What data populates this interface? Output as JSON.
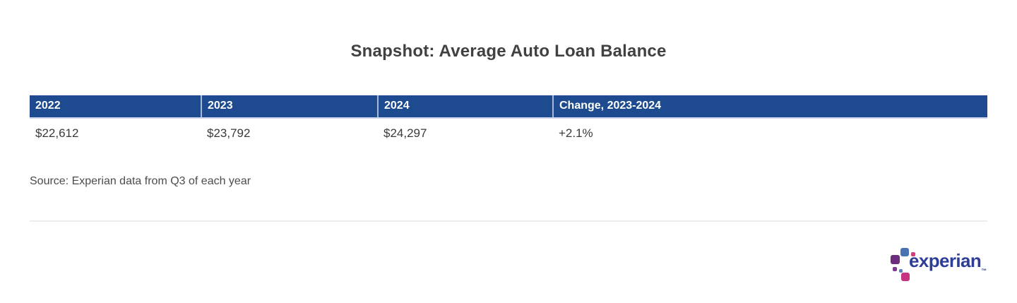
{
  "title": "Snapshot: Average Auto Loan Balance",
  "table": {
    "headers": [
      "2022",
      "2023",
      "2024",
      "Change, 2023-2024"
    ],
    "rows": [
      [
        "$22,612",
        "$23,792",
        "$24,297",
        "+2.1%"
      ]
    ]
  },
  "source": "Source: Experian data from Q3 of each year",
  "logo": {
    "wordmark": "experian",
    "trademark": "™"
  },
  "colors": {
    "header_bg": "#1e4b8f",
    "header_text": "#ffffff",
    "title_text": "#414141",
    "body_text": "#3a3a3a",
    "divider": "#ececec",
    "logo_wordmark_blue": "#2e3e96",
    "logo_dot_blue": "#4a73b4",
    "logo_dot_purple": "#6d2c7e",
    "logo_dot_magenta": "#c8347f"
  },
  "chart_data": {
    "type": "table",
    "title": "Snapshot: Average Auto Loan Balance",
    "columns": [
      "2022",
      "2023",
      "2024",
      "Change, 2023-2024"
    ],
    "rows": [
      [
        "$22,612",
        "$23,792",
        "$24,297",
        "+2.1%"
      ]
    ],
    "values_numeric": {
      "2022": 22612,
      "2023": 23792,
      "2024": 24297,
      "change_2023_2024_pct": 2.1
    },
    "source": "Source: Experian data from Q3 of each year"
  }
}
